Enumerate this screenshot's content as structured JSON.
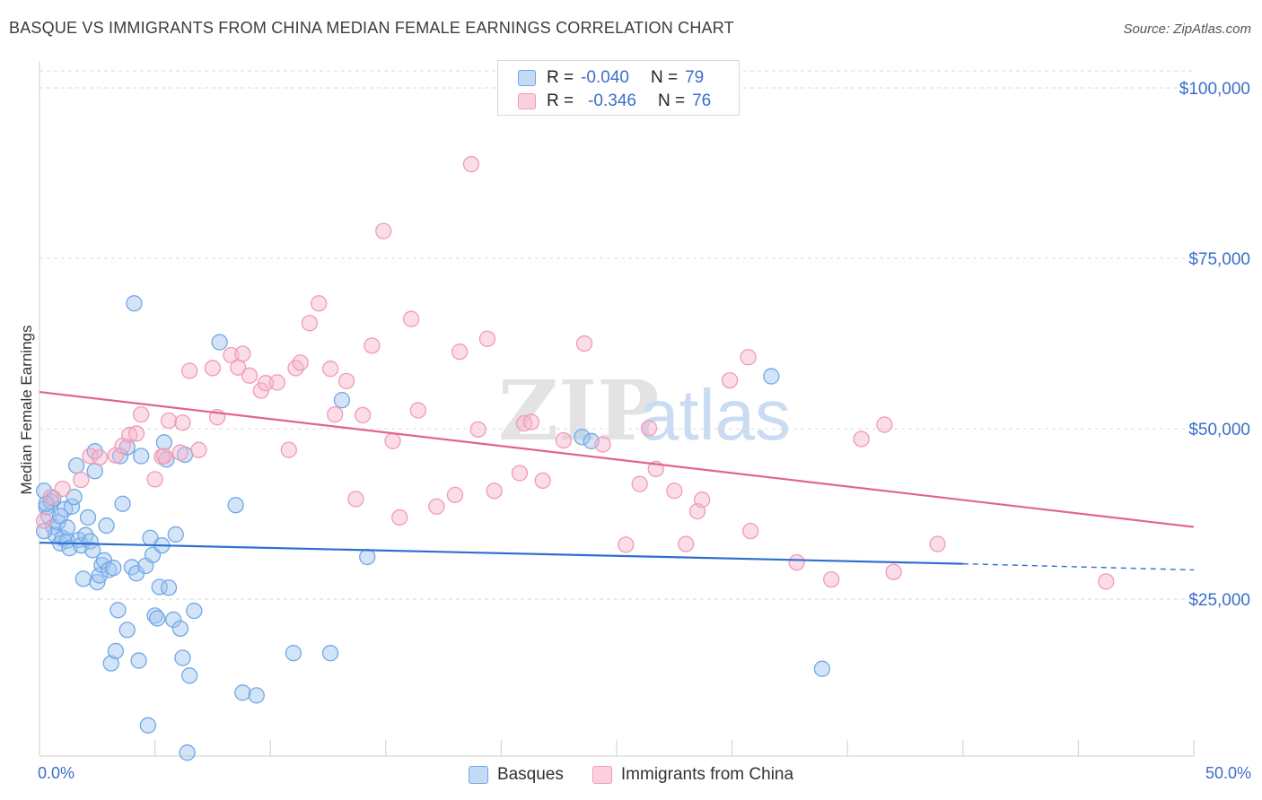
{
  "title": "BASQUE VS IMMIGRANTS FROM CHINA MEDIAN FEMALE EARNINGS CORRELATION CHART",
  "source": "Source: ZipAtlas.com",
  "watermark": {
    "zip": "ZIP",
    "atlas": "atlas"
  },
  "legend_top": {
    "rows": [
      {
        "r_label": "R =",
        "r_value": "-0.040",
        "n_label": "N =",
        "n_value": "79",
        "color": "#6fa8e8"
      },
      {
        "r_label": "R =",
        "r_value": "-0.346",
        "n_label": "N =",
        "n_value": "76",
        "color": "#f29ab6"
      }
    ]
  },
  "legend_bottom": [
    {
      "label": "Basques",
      "color": "#6fa8e8"
    },
    {
      "label": "Immigrants from China",
      "color": "#f29ab6"
    }
  ],
  "chart_data": {
    "type": "scatter",
    "ylabel": "Median Female Earnings",
    "x_tick_labels": {
      "min": "0.0%",
      "max": "50.0%"
    },
    "y_tick_labels": [
      "$25,000",
      "$50,000",
      "$75,000",
      "$100,000"
    ],
    "y_ticks": [
      25000,
      50000,
      75000,
      100000
    ],
    "xlim": [
      0,
      50
    ],
    "ylim": [
      2000,
      102500
    ],
    "grid": true,
    "series": [
      {
        "name": "Basques",
        "color": "#6fa8e8",
        "trend": {
          "x0": 0,
          "y0": 33300,
          "x1": 40,
          "y1": 30200,
          "dash_to_x": 50,
          "dash_y": 29300
        },
        "points": [
          [
            0.2,
            40.9
          ],
          [
            0.3,
            38.5
          ],
          [
            0.4,
            37.2
          ],
          [
            0.5,
            39.3
          ],
          [
            0.6,
            35.6
          ],
          [
            0.7,
            34.4
          ],
          [
            0.8,
            36.3
          ],
          [
            0.9,
            33.2
          ],
          [
            1.0,
            34.0
          ],
          [
            1.1,
            38.2
          ],
          [
            1.2,
            33.6
          ],
          [
            1.3,
            32.5
          ],
          [
            1.4,
            38.6
          ],
          [
            1.5,
            40.0
          ],
          [
            1.7,
            33.7
          ],
          [
            1.8,
            32.9
          ],
          [
            1.9,
            28.0
          ],
          [
            2.0,
            34.4
          ],
          [
            2.1,
            37.0
          ],
          [
            2.2,
            33.5
          ],
          [
            2.3,
            32.2
          ],
          [
            2.4,
            43.8
          ],
          [
            2.5,
            27.5
          ],
          [
            2.6,
            28.5
          ],
          [
            2.7,
            30.0
          ],
          [
            2.8,
            30.7
          ],
          [
            2.9,
            35.8
          ],
          [
            3.0,
            29.3
          ],
          [
            3.1,
            15.6
          ],
          [
            3.2,
            29.6
          ],
          [
            3.3,
            17.4
          ],
          [
            3.4,
            23.4
          ],
          [
            3.5,
            46.0
          ],
          [
            3.6,
            39.0
          ],
          [
            3.8,
            20.5
          ],
          [
            4.0,
            29.7
          ],
          [
            4.1,
            68.4
          ],
          [
            4.2,
            28.8
          ],
          [
            4.3,
            16.0
          ],
          [
            4.4,
            46.0
          ],
          [
            4.6,
            29.9
          ],
          [
            4.7,
            6.5
          ],
          [
            4.8,
            34.0
          ],
          [
            4.9,
            31.5
          ],
          [
            5.0,
            22.6
          ],
          [
            5.1,
            22.2
          ],
          [
            5.2,
            26.8
          ],
          [
            5.3,
            32.9
          ],
          [
            5.4,
            48.0
          ],
          [
            5.5,
            45.5
          ],
          [
            5.6,
            26.7
          ],
          [
            5.8,
            22.0
          ],
          [
            5.9,
            34.5
          ],
          [
            6.1,
            20.7
          ],
          [
            6.2,
            16.4
          ],
          [
            6.3,
            46.2
          ],
          [
            6.4,
            2.5
          ],
          [
            6.5,
            13.8
          ],
          [
            6.7,
            23.3
          ],
          [
            7.8,
            62.7
          ],
          [
            8.5,
            38.8
          ],
          [
            8.8,
            11.3
          ],
          [
            9.4,
            10.9
          ],
          [
            11.0,
            17.1
          ],
          [
            12.6,
            17.1
          ],
          [
            13.1,
            54.2
          ],
          [
            14.2,
            31.2
          ],
          [
            23.5,
            48.8
          ],
          [
            23.9,
            48.2
          ],
          [
            31.7,
            57.7
          ],
          [
            33.9,
            14.8
          ],
          [
            0.2,
            35.0
          ],
          [
            0.6,
            39.8
          ],
          [
            1.6,
            44.6
          ],
          [
            2.4,
            46.7
          ],
          [
            0.9,
            37.2
          ],
          [
            1.2,
            35.5
          ],
          [
            3.8,
            47.3
          ],
          [
            0.3,
            39.0
          ]
        ]
      },
      {
        "name": "Immigrants from China",
        "color": "#f29ab6",
        "trend": {
          "x0": 0,
          "y0": 55400,
          "x1": 50,
          "y1": 35600
        },
        "points": [
          [
            0.2,
            36.5
          ],
          [
            0.5,
            40.0
          ],
          [
            1.0,
            41.2
          ],
          [
            1.8,
            42.5
          ],
          [
            2.2,
            46.0
          ],
          [
            2.6,
            45.8
          ],
          [
            3.3,
            46.1
          ],
          [
            3.6,
            47.5
          ],
          [
            3.9,
            49.1
          ],
          [
            4.2,
            49.3
          ],
          [
            4.4,
            52.1
          ],
          [
            5.0,
            42.6
          ],
          [
            5.3,
            45.9
          ],
          [
            5.4,
            46.0
          ],
          [
            5.6,
            51.2
          ],
          [
            6.1,
            46.5
          ],
          [
            6.2,
            50.9
          ],
          [
            6.5,
            58.5
          ],
          [
            6.9,
            46.9
          ],
          [
            7.5,
            58.9
          ],
          [
            7.7,
            51.7
          ],
          [
            8.3,
            60.8
          ],
          [
            8.6,
            59.0
          ],
          [
            8.8,
            61.0
          ],
          [
            9.1,
            57.8
          ],
          [
            9.6,
            55.6
          ],
          [
            9.8,
            56.7
          ],
          [
            10.3,
            56.8
          ],
          [
            10.8,
            46.9
          ],
          [
            11.1,
            58.9
          ],
          [
            11.3,
            59.7
          ],
          [
            11.7,
            65.5
          ],
          [
            12.1,
            68.4
          ],
          [
            12.6,
            58.8
          ],
          [
            12.8,
            52.1
          ],
          [
            13.3,
            57.0
          ],
          [
            13.7,
            39.7
          ],
          [
            14.0,
            52.0
          ],
          [
            14.4,
            62.2
          ],
          [
            14.9,
            79.0
          ],
          [
            15.3,
            48.2
          ],
          [
            15.6,
            37.0
          ],
          [
            16.1,
            66.1
          ],
          [
            16.4,
            52.7
          ],
          [
            17.2,
            38.6
          ],
          [
            18.0,
            40.3
          ],
          [
            18.2,
            61.3
          ],
          [
            18.7,
            88.8
          ],
          [
            19.0,
            49.9
          ],
          [
            19.4,
            63.2
          ],
          [
            19.7,
            40.9
          ],
          [
            20.8,
            43.5
          ],
          [
            21.0,
            50.8
          ],
          [
            21.3,
            51.0
          ],
          [
            21.8,
            42.4
          ],
          [
            22.7,
            48.3
          ],
          [
            23.6,
            62.5
          ],
          [
            24.4,
            47.7
          ],
          [
            25.4,
            33.0
          ],
          [
            26.0,
            41.9
          ],
          [
            26.4,
            50.1
          ],
          [
            26.7,
            44.1
          ],
          [
            27.5,
            40.9
          ],
          [
            28.0,
            33.1
          ],
          [
            28.5,
            37.9
          ],
          [
            28.7,
            39.6
          ],
          [
            29.9,
            57.1
          ],
          [
            30.7,
            60.5
          ],
          [
            30.8,
            35.0
          ],
          [
            32.8,
            30.4
          ],
          [
            34.3,
            27.9
          ],
          [
            35.6,
            48.5
          ],
          [
            36.6,
            50.6
          ],
          [
            37.0,
            29.0
          ],
          [
            38.9,
            33.1
          ],
          [
            46.2,
            27.6
          ]
        ]
      }
    ]
  }
}
